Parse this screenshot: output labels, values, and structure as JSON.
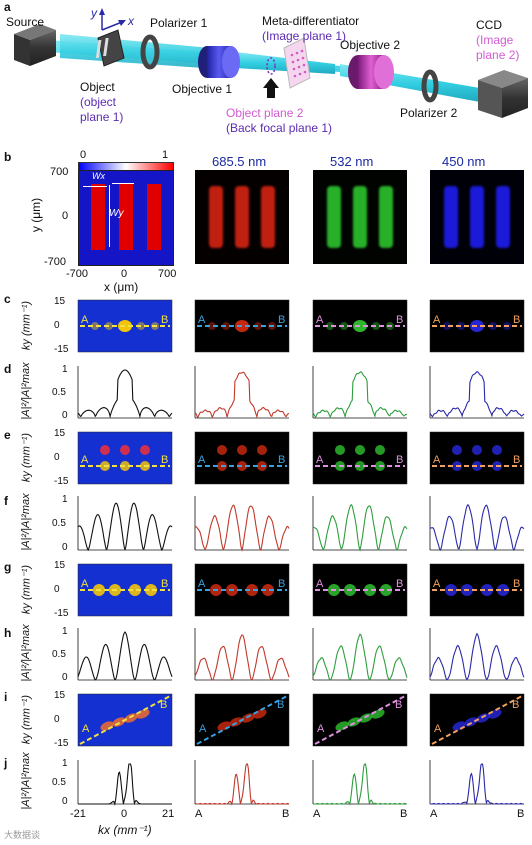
{
  "panels": {
    "a": "a",
    "b": "b",
    "c": "c",
    "d": "d",
    "e": "e",
    "f": "f",
    "g": "g",
    "h": "h",
    "i": "i",
    "j": "j"
  },
  "setup": {
    "source": "Source",
    "object_line1": "Object",
    "object_line2": "(object",
    "object_line3": "plane 1)",
    "polarizer1": "Polarizer 1",
    "meta_line1": "Meta-differentiator",
    "meta_line2": "(Image plane 1)",
    "objective1": "Objective 1",
    "object_plane2_line1": "Object plane 2",
    "object_plane2_line2": "(Back focal plane 1)",
    "objective2": "Objective 2",
    "ccd": "CCD",
    "ccd_line2": "(Image",
    "ccd_line3": "plane 2)",
    "polarizer2": "Polarizer 2",
    "axis_y": "y",
    "axis_x": "x"
  },
  "wavelengths": [
    "685.5 nm",
    "532 nm",
    "450 nm"
  ],
  "colorbar": {
    "min": "0",
    "max": "1"
  },
  "object_panel": {
    "y_ticks": [
      "700",
      "0",
      "-700"
    ],
    "x_ticks": [
      "-700",
      "0",
      "700"
    ],
    "ylabel": "y (μm)",
    "xlabel": "x (μm)",
    "wx": "Wx",
    "wy": "Wy"
  },
  "ky_axis": {
    "ticks": [
      "15",
      "0",
      "-15"
    ],
    "label": "ky (mm⁻¹)"
  },
  "intensity_axis": {
    "ticks": [
      "1",
      "0.5",
      "0"
    ],
    "label": "|A|²/|A|²max"
  },
  "kx_axis": {
    "ticks": [
      "-21",
      "0",
      "21"
    ],
    "label": "kx (mm⁻¹)"
  },
  "line_endpoints": {
    "start": "A",
    "end": "B"
  },
  "colors": {
    "cyan_beam": "#38d6e8",
    "red": "#c0392b",
    "green": "#2e9e3e",
    "blue": "#2a2aa8",
    "sim_line": "#f0e040",
    "red_line": "#3aa0e0",
    "green_line": "#e090e0",
    "blue_line": "#f0a060"
  },
  "watermark": "大数据谈"
}
